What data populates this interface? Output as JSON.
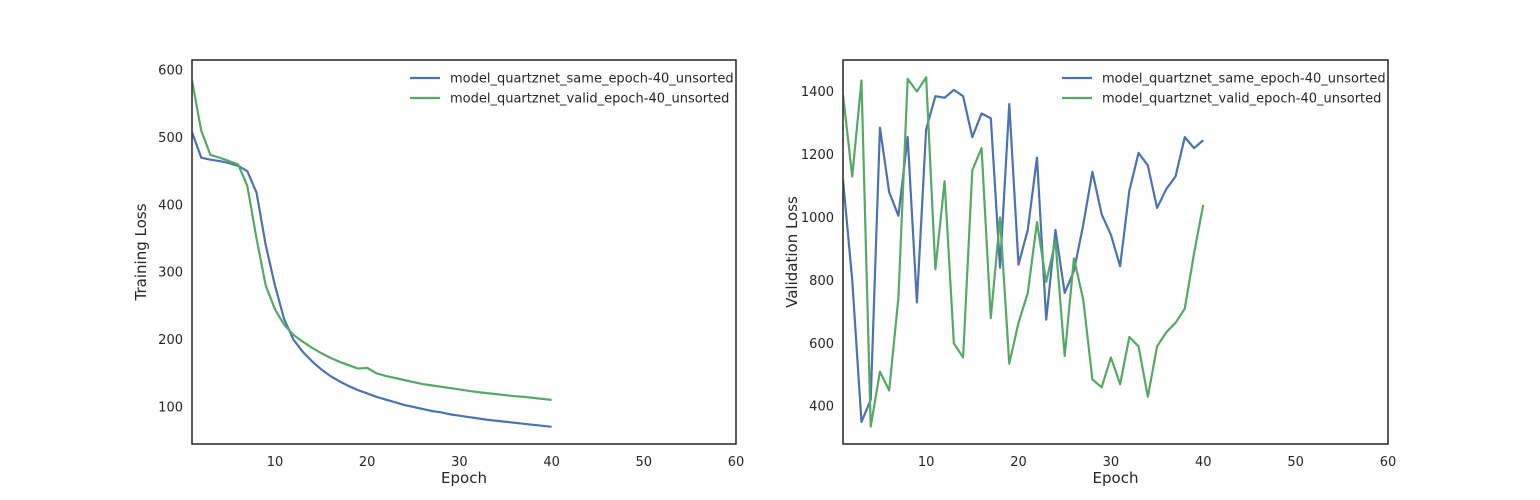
{
  "chart_data": [
    {
      "type": "line",
      "xlabel": "Epoch",
      "ylabel": "Training Loss",
      "xlim": [
        1,
        60
      ],
      "ylim": [
        45,
        615
      ],
      "xticks": [
        10,
        20,
        30,
        40,
        50,
        60
      ],
      "yticks": [
        100,
        200,
        300,
        400,
        500,
        600
      ],
      "grid": false,
      "legend": "top-right",
      "series": [
        {
          "name": "model_quartznet_same_epoch-40_unsorted",
          "color": "#4c72b0",
          "x": [
            1,
            2,
            3,
            4,
            5,
            6,
            7,
            8,
            9,
            10,
            11,
            12,
            13,
            14,
            15,
            16,
            17,
            18,
            19,
            20,
            21,
            22,
            23,
            24,
            25,
            26,
            27,
            28,
            29,
            30,
            31,
            32,
            33,
            34,
            35,
            36,
            37,
            38,
            39,
            40
          ],
          "y": [
            508,
            470,
            467,
            465,
            462,
            458,
            450,
            418,
            340,
            280,
            230,
            200,
            182,
            168,
            156,
            146,
            138,
            131,
            125,
            120,
            115,
            111,
            107,
            103,
            100,
            97,
            94,
            92,
            89,
            87,
            85,
            83,
            81,
            79.5,
            78,
            76.5,
            75,
            73.5,
            72,
            70.5
          ]
        },
        {
          "name": "model_quartznet_valid_epoch-40_unsorted",
          "color": "#55a868",
          "x": [
            1,
            2,
            3,
            4,
            5,
            6,
            7,
            8,
            9,
            10,
            11,
            12,
            13,
            14,
            15,
            16,
            17,
            18,
            19,
            20,
            21,
            22,
            23,
            24,
            25,
            26,
            27,
            28,
            29,
            30,
            31,
            32,
            33,
            34,
            35,
            36,
            37,
            38,
            39,
            40
          ],
          "y": [
            585,
            510,
            474,
            470,
            465,
            460,
            428,
            350,
            280,
            245,
            222,
            207,
            197,
            188,
            180,
            173,
            167,
            162,
            157,
            158,
            150,
            146,
            143,
            140,
            137,
            134,
            132,
            130,
            128,
            126,
            124,
            122,
            120.5,
            119,
            117.5,
            116,
            115,
            113.5,
            112,
            110.5
          ]
        }
      ]
    },
    {
      "type": "line",
      "xlabel": "Epoch",
      "ylabel": "Validation Loss",
      "xlim": [
        1,
        60
      ],
      "ylim": [
        280,
        1500
      ],
      "xticks": [
        10,
        20,
        30,
        40,
        50,
        60
      ],
      "yticks": [
        400,
        600,
        800,
        1000,
        1200,
        1400
      ],
      "grid": false,
      "legend": "top-right",
      "series": [
        {
          "name": "model_quartznet_same_epoch-40_unsorted",
          "color": "#4c72b0",
          "x": [
            1,
            2,
            3,
            4,
            5,
            6,
            7,
            8,
            9,
            10,
            11,
            12,
            13,
            14,
            15,
            16,
            17,
            18,
            19,
            20,
            21,
            22,
            23,
            24,
            25,
            26,
            27,
            28,
            29,
            30,
            31,
            32,
            33,
            34,
            35,
            36,
            37,
            38,
            39,
            40
          ],
          "y": [
            1120,
            800,
            350,
            420,
            1285,
            1080,
            1005,
            1255,
            730,
            1280,
            1385,
            1380,
            1405,
            1385,
            1255,
            1330,
            1315,
            840,
            1360,
            850,
            960,
            1190,
            675,
            960,
            760,
            830,
            975,
            1145,
            1010,
            945,
            845,
            1085,
            1205,
            1165,
            1030,
            1090,
            1130,
            1255,
            1220,
            1245
          ]
        },
        {
          "name": "model_quartznet_valid_epoch-40_unsorted",
          "color": "#55a868",
          "x": [
            1,
            2,
            3,
            4,
            5,
            6,
            7,
            8,
            9,
            10,
            11,
            12,
            13,
            14,
            15,
            16,
            17,
            18,
            19,
            20,
            21,
            22,
            23,
            24,
            25,
            26,
            27,
            28,
            29,
            30,
            31,
            32,
            33,
            34,
            35,
            36,
            37,
            38,
            39,
            40
          ],
          "y": [
            1390,
            1130,
            1435,
            335,
            510,
            450,
            745,
            1440,
            1400,
            1445,
            835,
            1115,
            600,
            555,
            1150,
            1220,
            680,
            1000,
            535,
            665,
            760,
            985,
            795,
            925,
            560,
            870,
            740,
            485,
            460,
            555,
            470,
            620,
            590,
            430,
            590,
            635,
            665,
            710,
            885,
            1040
          ]
        }
      ]
    }
  ]
}
